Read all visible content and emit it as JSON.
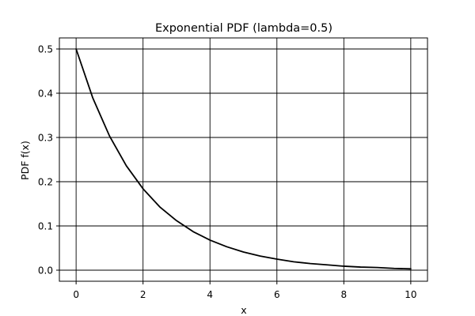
{
  "chart_data": {
    "type": "line",
    "title": "Exponential PDF (lambda=0.5)",
    "xlabel": "x",
    "ylabel": "PDF f(x)",
    "xlim": [
      -0.5,
      10.5
    ],
    "ylim": [
      -0.025,
      0.525
    ],
    "x_ticks": [
      0,
      2,
      4,
      6,
      8,
      10
    ],
    "y_ticks": [
      0.0,
      0.1,
      0.2,
      0.3,
      0.4,
      0.5
    ],
    "x_tick_labels": [
      "0",
      "2",
      "4",
      "6",
      "8",
      "10"
    ],
    "y_tick_labels": [
      "0.0",
      "0.1",
      "0.2",
      "0.3",
      "0.4",
      "0.5"
    ],
    "grid": true,
    "legend": "none",
    "series": [
      {
        "color": "#000000",
        "x": [
          0,
          0.5,
          1,
          1.5,
          2,
          2.5,
          3,
          3.5,
          4,
          4.5,
          5,
          5.5,
          6,
          6.5,
          7,
          7.5,
          8,
          8.5,
          9,
          9.5,
          10
        ],
        "y": [
          0.5,
          0.389,
          0.303,
          0.236,
          0.184,
          0.143,
          0.112,
          0.087,
          0.068,
          0.053,
          0.041,
          0.032,
          0.025,
          0.019,
          0.015,
          0.012,
          0.009,
          0.007,
          0.006,
          0.004,
          0.003
        ]
      }
    ]
  }
}
